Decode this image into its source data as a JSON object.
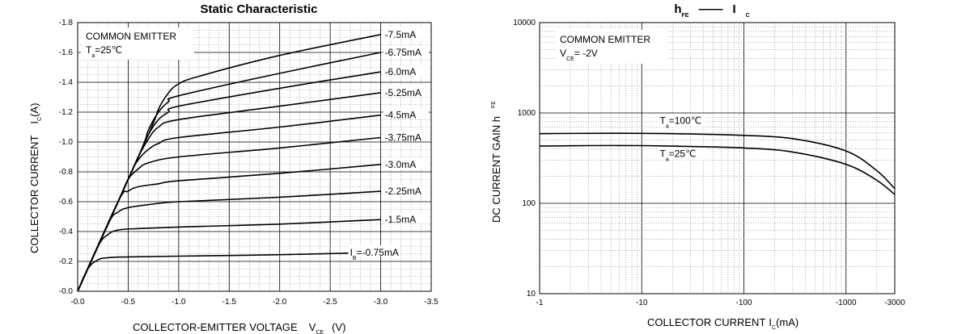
{
  "chart_data": [
    {
      "type": "line",
      "title": "Static Characteristic",
      "xlabel": "COLLECTOR-EMITTER VOLTAGE",
      "xlabel_symbol": "V",
      "xlabel_symbol_sub": "CE",
      "xlabel_unit": "(V)",
      "ylabel": "COLLECTOR CURRENT",
      "ylabel_symbol": "I",
      "ylabel_symbol_sub": "C",
      "ylabel_unit": "(A)",
      "xlim": [
        0,
        -3.5
      ],
      "ylim": [
        0,
        -1.8
      ],
      "x_ticks": [
        "-0.0",
        "-0.5",
        "-1.0",
        "-1.5",
        "-2.0",
        "-2.5",
        "-3.0",
        "-3.5"
      ],
      "y_ticks": [
        "-0.0",
        "-0.2",
        "-0.4",
        "-0.6",
        "-0.8",
        "-1.0",
        "-1.2",
        "-1.4",
        "-1.6",
        "-1.8"
      ],
      "grid": true,
      "annotation": {
        "line1": "COMMON EMITTER",
        "line2_symbol": "T",
        "line2_sub": "a",
        "line2_rest": "=25℃"
      },
      "series_label_prefix": "I",
      "series_label_prefix_sub": "B",
      "series": [
        {
          "name": "=-0.75mA",
          "x": [
            0,
            -0.1,
            -0.2,
            -0.3,
            -0.5,
            -1.0,
            -2.0,
            -3.0
          ],
          "y": [
            0,
            -0.15,
            -0.21,
            -0.225,
            -0.23,
            -0.235,
            -0.245,
            -0.26
          ]
        },
        {
          "name": "-1.5mA",
          "x": [
            0,
            -0.2,
            -0.3,
            -0.4,
            -0.6,
            -1.0,
            -2.0,
            -3.0
          ],
          "y": [
            0,
            -0.3,
            -0.38,
            -0.41,
            -0.42,
            -0.43,
            -0.45,
            -0.48
          ]
        },
        {
          "name": "-2.25mA",
          "x": [
            0,
            -0.3,
            -0.4,
            -0.5,
            -0.7,
            -1.0,
            -2.0,
            -3.0
          ],
          "y": [
            0,
            -0.45,
            -0.53,
            -0.56,
            -0.58,
            -0.6,
            -0.63,
            -0.67
          ]
        },
        {
          "name": "-3.0mA",
          "x": [
            0,
            -0.4,
            -0.5,
            -0.6,
            -0.8,
            -1.0,
            -2.0,
            -3.0
          ],
          "y": [
            0,
            -0.6,
            -0.67,
            -0.7,
            -0.72,
            -0.74,
            -0.79,
            -0.85
          ]
        },
        {
          "name": "-3.75mA",
          "x": [
            0,
            -0.4,
            -0.5,
            -0.6,
            -0.7,
            -1.0,
            -2.0,
            -3.0
          ],
          "y": [
            0,
            -0.6,
            -0.75,
            -0.82,
            -0.86,
            -0.9,
            -0.96,
            -1.03
          ]
        },
        {
          "name": "-4.5mA",
          "x": [
            0,
            -0.5,
            -0.6,
            -0.7,
            -0.8,
            -1.0,
            -2.0,
            -3.0
          ],
          "y": [
            0,
            -0.75,
            -0.88,
            -0.95,
            -0.99,
            -1.03,
            -1.1,
            -1.18
          ]
        },
        {
          "name": "-5.25mA",
          "x": [
            0,
            -0.5,
            -0.6,
            -0.7,
            -0.8,
            -1.0,
            -2.0,
            -3.0
          ],
          "y": [
            0,
            -0.75,
            -0.9,
            -1.02,
            -1.1,
            -1.15,
            -1.24,
            -1.33
          ]
        },
        {
          "name": "-6.0mA",
          "x": [
            0,
            -0.6,
            -0.7,
            -0.8,
            -0.9,
            -1.0,
            -2.0,
            -3.0
          ],
          "y": [
            0,
            -0.9,
            -1.05,
            -1.15,
            -1.2,
            -1.24,
            -1.36,
            -1.47
          ]
        },
        {
          "name": "-6.75mA",
          "x": [
            0,
            -0.6,
            -0.7,
            -0.8,
            -0.9,
            -1.0,
            -2.0,
            -3.0
          ],
          "y": [
            0,
            -0.9,
            -1.08,
            -1.2,
            -1.27,
            -1.31,
            -1.46,
            -1.6
          ]
        },
        {
          "name": "-7.5mA",
          "x": [
            0,
            -0.7,
            -0.8,
            -0.9,
            -1.0,
            -1.2,
            -2.0,
            -3.0
          ],
          "y": [
            0,
            -1.05,
            -1.22,
            -1.33,
            -1.39,
            -1.44,
            -1.58,
            -1.72
          ]
        }
      ]
    },
    {
      "type": "line",
      "title_symbol": "h",
      "title_symbol_sub": "FE",
      "title_dash": "——",
      "title_symbol2": "I",
      "title_symbol2_sub": "C",
      "xlabel": "COLLECTOR CURRENT",
      "xlabel_symbol": "I",
      "xlabel_symbol_sub": "C",
      "xlabel_unit": "(mA)",
      "ylabel": "DC CURRENT GAIN h",
      "ylabel_sub": "FE",
      "x_scale": "log",
      "y_scale": "log",
      "xlim": [
        -1,
        -3000
      ],
      "ylim": [
        10,
        10000
      ],
      "x_ticks": [
        "-1",
        "-10",
        "-100",
        "-1000",
        "-3000"
      ],
      "y_ticks": [
        "10",
        "100",
        "1000",
        "10000"
      ],
      "grid": true,
      "annotation": {
        "line1": "COMMON EMITTER",
        "line2_symbol": "V",
        "line2_sub": "CE",
        "line2_rest": "= -2V"
      },
      "series": [
        {
          "name_symbol": "T",
          "name_sub": "a",
          "name_rest": "=100℃",
          "x": [
            -1,
            -3,
            -10,
            -30,
            -100,
            -300,
            -1000,
            -2000,
            -3000
          ],
          "y": [
            590,
            595,
            595,
            585,
            565,
            520,
            380,
            230,
            145
          ]
        },
        {
          "name_symbol": "T",
          "name_sub": "a",
          "name_rest": "=25℃",
          "x": [
            -1,
            -3,
            -10,
            -30,
            -100,
            -300,
            -1000,
            -2000,
            -3000
          ],
          "y": [
            430,
            435,
            435,
            425,
            410,
            370,
            270,
            180,
            125
          ]
        }
      ]
    }
  ]
}
